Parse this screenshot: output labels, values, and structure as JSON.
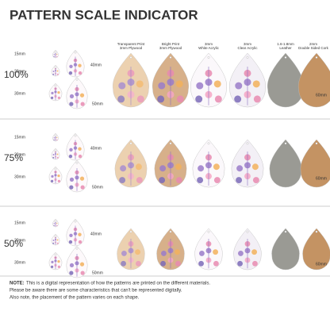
{
  "title": "PATTERN SCALE INDICATOR",
  "materials": [
    {
      "name": "Transparent Print",
      "detail": "3mm Plywood"
    },
    {
      "name": "Bright Print",
      "detail": "3mm Plywood"
    },
    {
      "name": "3mm",
      "detail": "White Acrylic"
    },
    {
      "name": "3mm",
      "detail": "Clear Acrylic"
    },
    {
      "name": "1.6-1.8mm",
      "detail": "Leather"
    },
    {
      "name": "2mm",
      "detail": "Double Sided Cork"
    }
  ],
  "scales": [
    {
      "label": "100%",
      "sizes": [
        "15mm",
        "20mm",
        "30mm",
        "40mm",
        "50mm"
      ],
      "large_size": "60mm"
    },
    {
      "label": "75%",
      "sizes": [
        "15mm",
        "20mm",
        "30mm",
        "40mm",
        "50mm"
      ],
      "large_size": "60mm"
    },
    {
      "label": "50%",
      "sizes": [
        "15mm",
        "20mm",
        "30mm",
        "40mm",
        "50mm"
      ],
      "large_size": "60mm"
    }
  ],
  "note": {
    "label": "NOTE:",
    "lines": [
      "This is a digital representation of how the patterns are printed on the different materials.",
      "Please be aware there are some characteristics that can't be represented digitally.",
      "Also note, the placement of the pattern varies on each shape."
    ]
  }
}
